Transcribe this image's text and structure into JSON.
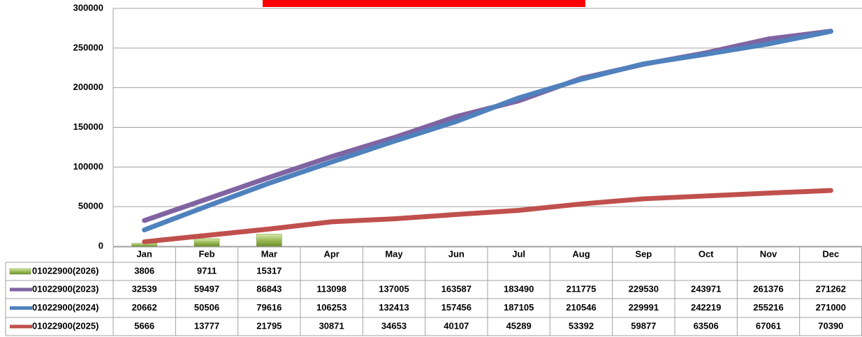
{
  "chart_data": {
    "type": "line",
    "categories": [
      "Jan",
      "Feb",
      "Mar",
      "Apr",
      "May",
      "Jun",
      "Jul",
      "Aug",
      "Sep",
      "Oct",
      "Nov",
      "Dec"
    ],
    "series": [
      {
        "name": "01022900(2026)",
        "type": "bar",
        "color": "#9bbb59",
        "values": [
          3806,
          9711,
          15317,
          null,
          null,
          null,
          null,
          null,
          null,
          null,
          null,
          null
        ]
      },
      {
        "name": "01022900(2023)",
        "type": "line",
        "color": "#8064a2",
        "values": [
          32539,
          59497,
          86843,
          113098,
          137005,
          163587,
          183490,
          211775,
          229530,
          243971,
          261376,
          271262
        ]
      },
      {
        "name": "01022900(2024)",
        "type": "line",
        "color": "#4f81bd",
        "values": [
          20662,
          50506,
          79616,
          106253,
          132413,
          157456,
          187105,
          210546,
          229991,
          242219,
          255216,
          271000
        ]
      },
      {
        "name": "01022900(2025)",
        "type": "line",
        "color": "#c0504d",
        "values": [
          5666,
          13777,
          21795,
          30871,
          34653,
          40107,
          45289,
          53392,
          59877,
          63506,
          67061,
          70390
        ]
      }
    ],
    "ylim": [
      0,
      300000
    ],
    "yticks": [
      0,
      50000,
      100000,
      150000,
      200000,
      250000,
      300000
    ],
    "grid": true,
    "data_table": true
  }
}
